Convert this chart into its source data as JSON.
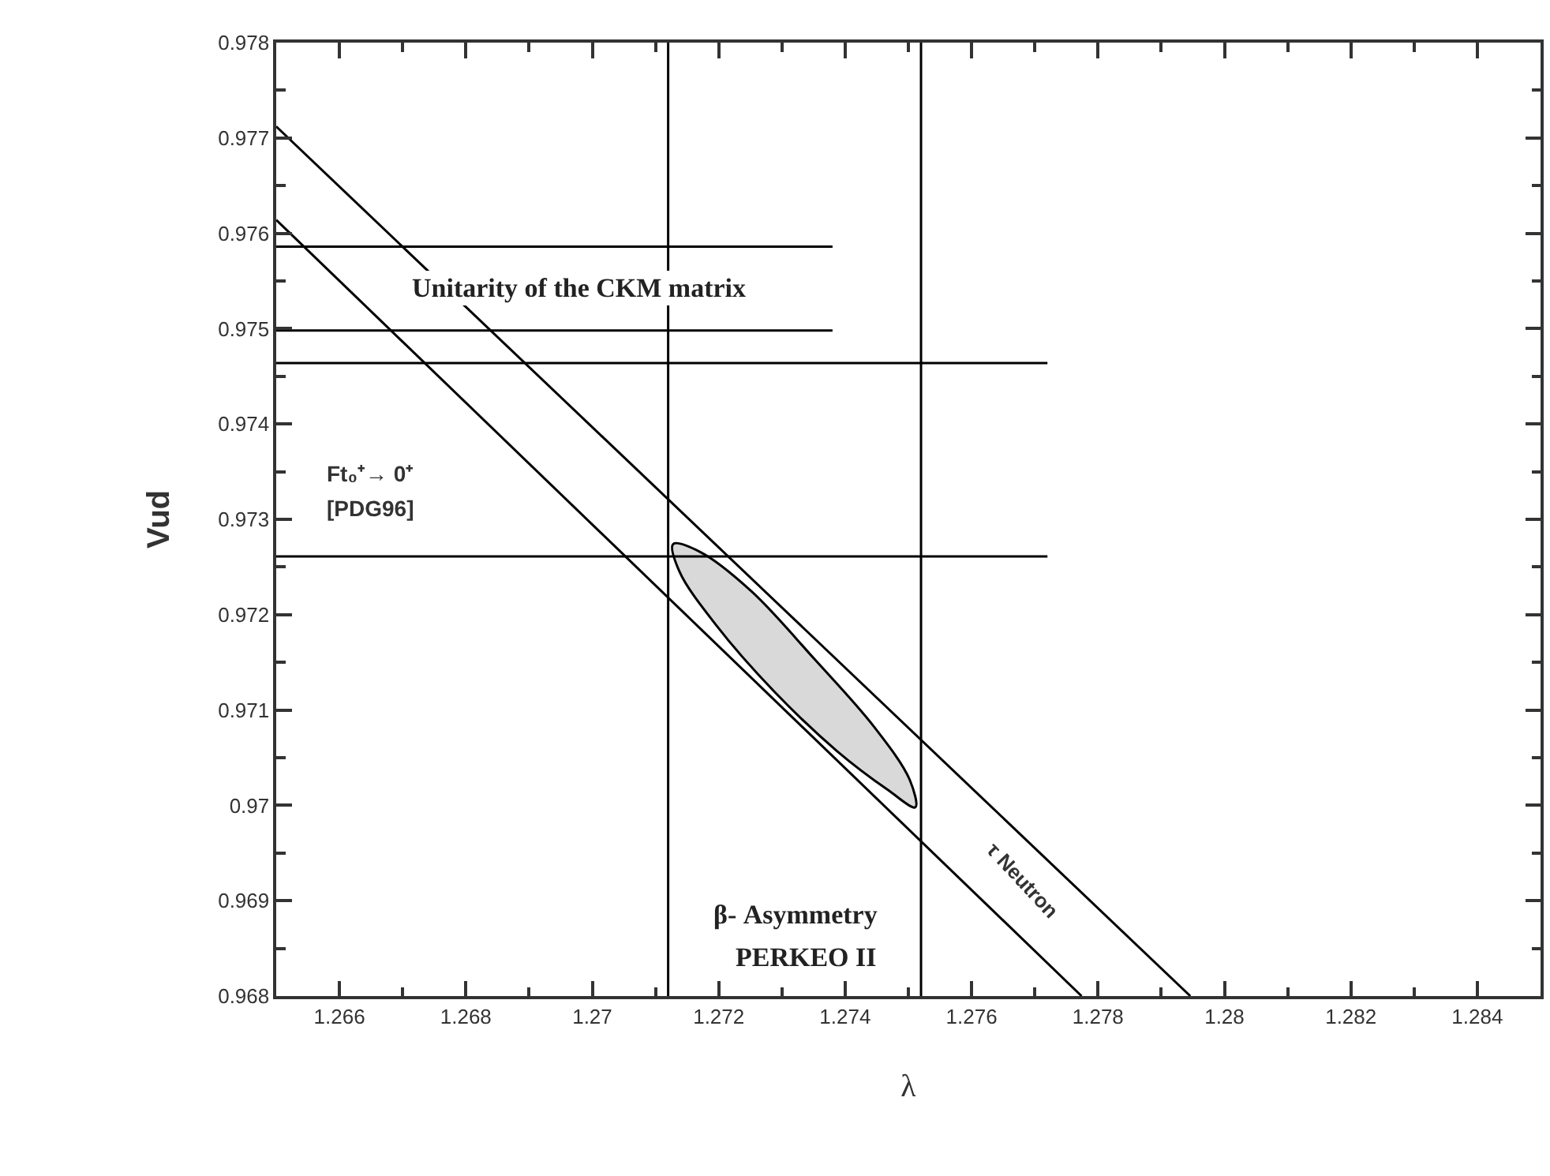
{
  "chart_data": {
    "type": "line",
    "xlabel": "λ",
    "ylabel": "Vud",
    "xlim": [
      1.265,
      1.285
    ],
    "ylim": [
      0.968,
      0.978
    ],
    "xticks": [
      1.266,
      1.268,
      1.27,
      1.272,
      1.274,
      1.276,
      1.278,
      1.28,
      1.282,
      1.284
    ],
    "yticks": [
      0.968,
      0.969,
      0.97,
      0.971,
      0.972,
      0.973,
      0.974,
      0.975,
      0.976,
      0.977,
      0.978
    ],
    "marker": "none",
    "line_style": "solid",
    "series": [
      {
        "type": "area",
        "color": "#d9d9d9",
        "x": [
          1.27511,
          1.27502,
          1.27445,
          1.27352,
          1.27251,
          1.2717,
          1.27128,
          1.27138,
          1.27196,
          1.27287,
          1.27387,
          1.27468,
          1.27511
        ],
        "values": [
          0.96998,
          0.97027,
          0.97083,
          0.97153,
          0.97225,
          0.97266,
          0.97274,
          0.97245,
          0.97189,
          0.9712,
          0.97057,
          0.97016,
          0.96998
        ]
      },
      {
        "color": "#000000",
        "x": [
          1.265,
          1.27946
        ],
        "values": [
          0.97712,
          0.968
        ]
      },
      {
        "color": "#000000",
        "x": [
          1.265,
          1.27774
        ],
        "values": [
          0.97614,
          0.968
        ]
      },
      {
        "color": "#000000",
        "x": [
          1.265,
          1.2738
        ],
        "values": [
          0.97586,
          0.97586
        ]
      },
      {
        "color": "#000000",
        "x": [
          1.265,
          1.2738
        ],
        "values": [
          0.97498,
          0.97498
        ]
      },
      {
        "color": "#000000",
        "x": [
          1.265,
          1.2772
        ],
        "values": [
          0.97464,
          0.97464
        ]
      },
      {
        "color": "#000000",
        "x": [
          1.265,
          1.2772
        ],
        "values": [
          0.97261,
          0.97261
        ]
      }
    ],
    "ref_lines": [
      {
        "axis": "x",
        "value": 1.2712,
        "color": "#000000"
      },
      {
        "axis": "x",
        "value": 1.2752,
        "color": "#000000"
      }
    ],
    "annotations": [
      "Unitarity of the CKM matrix",
      "Ft₀⁺→ 0⁺",
      "[PDG96]",
      "β- Asymmetry",
      "PERKEO II",
      "τ Neutron"
    ]
  }
}
